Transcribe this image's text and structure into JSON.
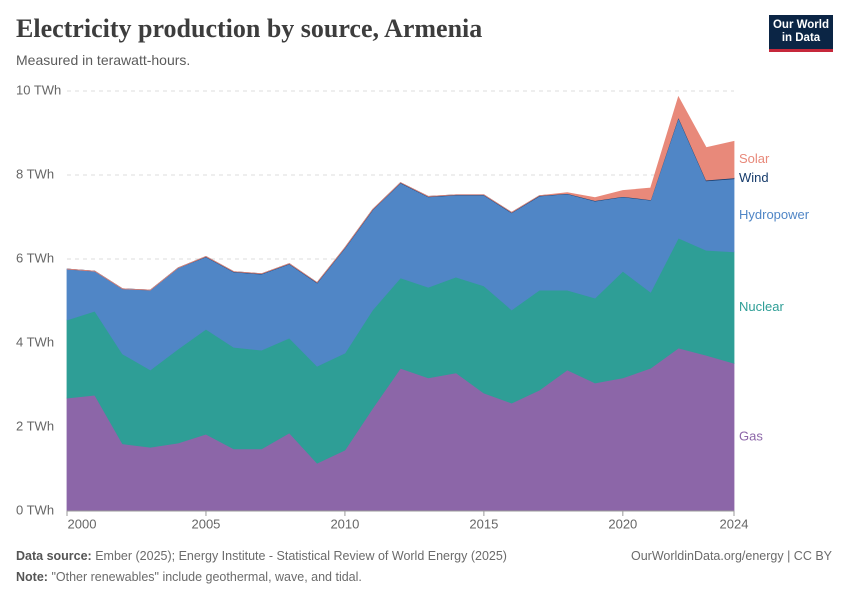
{
  "chart_data": {
    "type": "stacked_area",
    "title": "Electricity production by source, Armenia",
    "subtitle": "Measured in terawatt-hours.",
    "x": [
      2000,
      2001,
      2002,
      2003,
      2004,
      2005,
      2006,
      2007,
      2008,
      2009,
      2010,
      2011,
      2012,
      2013,
      2014,
      2015,
      2016,
      2017,
      2018,
      2019,
      2020,
      2021,
      2022,
      2023,
      2024
    ],
    "xlim": [
      2000,
      2024
    ],
    "xticks": [
      2000,
      2005,
      2010,
      2015,
      2020,
      2024
    ],
    "ylim": [
      0,
      10
    ],
    "yticks": [
      {
        "value": 0,
        "label": "0 TWh"
      },
      {
        "value": 2,
        "label": "2 TWh"
      },
      {
        "value": 4,
        "label": "4 TWh"
      },
      {
        "value": 6,
        "label": "6 TWh"
      },
      {
        "value": 8,
        "label": "8 TWh"
      },
      {
        "value": 10,
        "label": "10 TWh"
      }
    ],
    "grid": true,
    "series": [
      {
        "name": "Gas",
        "color": "#8c66a8",
        "values": [
          2.69,
          2.76,
          1.6,
          1.52,
          1.62,
          1.83,
          1.48,
          1.48,
          1.86,
          1.14,
          1.45,
          2.45,
          3.4,
          3.17,
          3.29,
          2.81,
          2.57,
          2.88,
          3.36,
          3.05,
          3.17,
          3.4,
          3.88,
          3.71,
          3.52
        ]
      },
      {
        "name": "Nuclear",
        "color": "#2e9e96",
        "values": [
          1.86,
          2.0,
          2.14,
          1.84,
          2.24,
          2.5,
          2.42,
          2.35,
          2.26,
          2.31,
          2.31,
          2.34,
          2.15,
          2.16,
          2.28,
          2.55,
          2.22,
          2.38,
          1.9,
          2.02,
          2.54,
          1.81,
          2.62,
          2.5,
          2.65
        ]
      },
      {
        "name": "Hydropower",
        "color": "#5086c6",
        "values": [
          1.21,
          0.95,
          1.55,
          1.9,
          1.93,
          1.72,
          1.79,
          1.81,
          1.76,
          1.98,
          2.5,
          2.38,
          2.26,
          2.15,
          1.95,
          2.16,
          2.31,
          2.24,
          2.29,
          2.31,
          1.77,
          2.19,
          2.86,
          1.65,
          1.74
        ]
      },
      {
        "name": "Wind",
        "color": "#163b6b",
        "values": [
          0,
          0,
          0,
          0,
          0,
          0.01,
          0.01,
          0.01,
          0.01,
          0.01,
          0.01,
          0.01,
          0.01,
          0.01,
          0.01,
          0.01,
          0.01,
          0.01,
          0.01,
          0.01,
          0.01,
          0.01,
          0.02,
          0.02,
          0.02
        ]
      },
      {
        "name": "Solar",
        "color": "#e8897a",
        "values": [
          0,
          0,
          0,
          0,
          0,
          0,
          0,
          0,
          0,
          0,
          0,
          0,
          0,
          0,
          0,
          0,
          0,
          0,
          0.02,
          0.07,
          0.14,
          0.28,
          0.48,
          0.77,
          0.87
        ]
      }
    ],
    "source_label": "Data source:",
    "source": "Ember (2025); Energy Institute - Statistical Review of World Energy (2025)",
    "credit": "OurWorldinData.org/energy | CC BY",
    "note_label": "Note:",
    "note": "\"Other renewables\" include geothermal, wave, and tidal.",
    "logo": [
      "Our World",
      "in Data"
    ]
  }
}
